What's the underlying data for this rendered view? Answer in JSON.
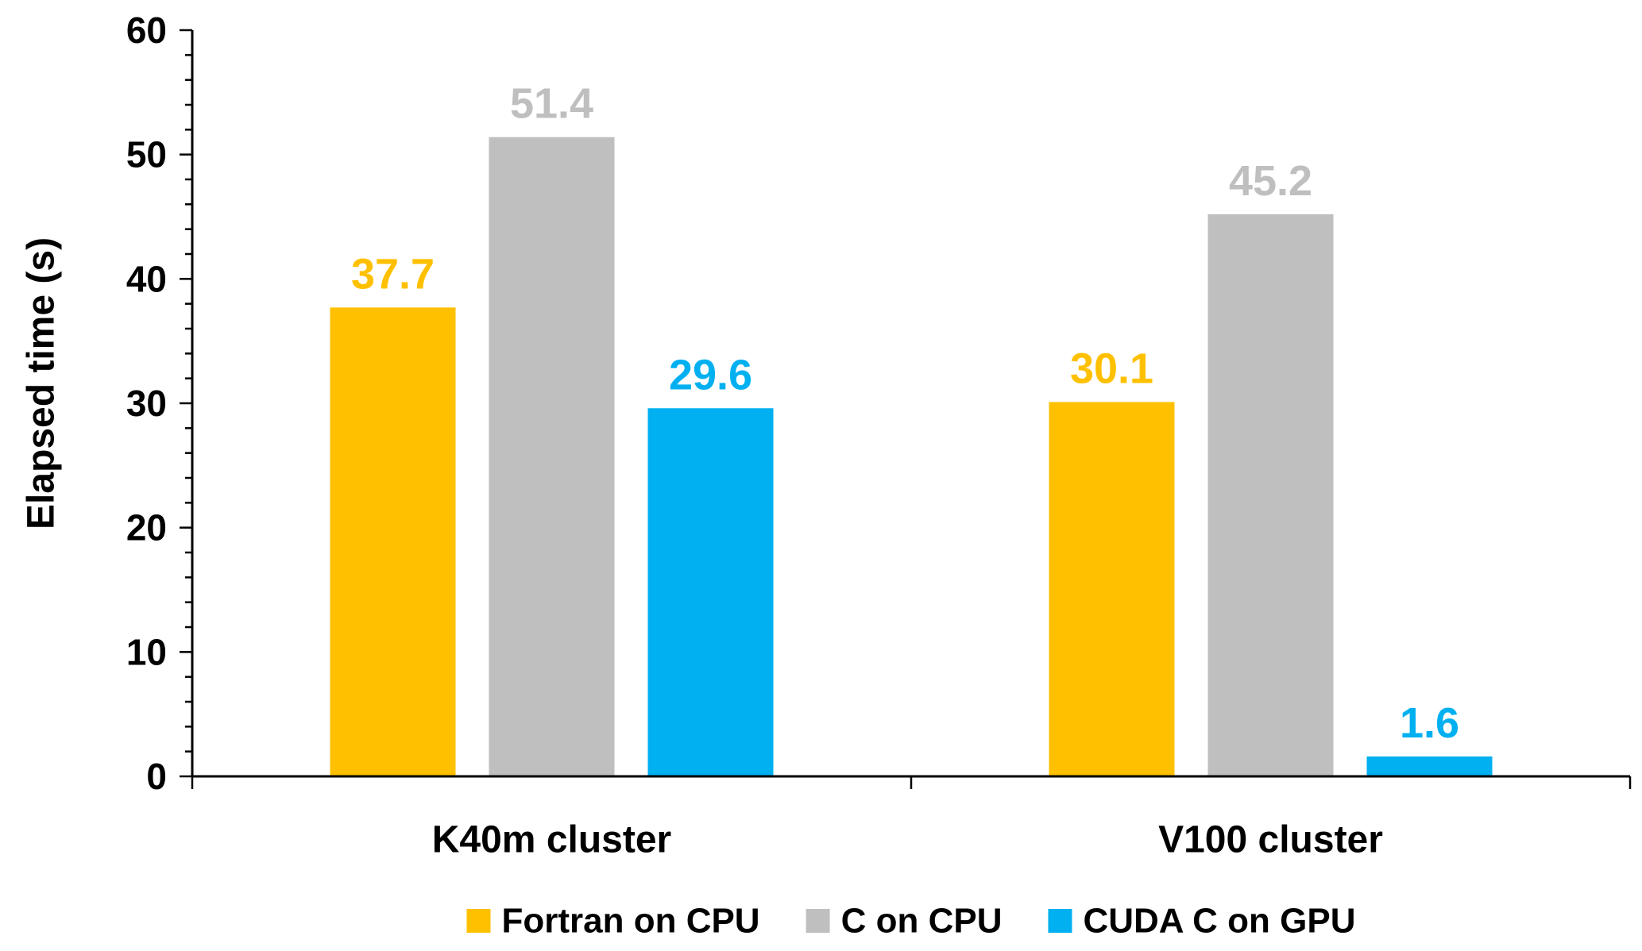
{
  "chart_data": {
    "type": "bar",
    "title": "",
    "xlabel": "",
    "ylabel": "Elapsed time (s)",
    "ylim": [
      0,
      60
    ],
    "yticks": [
      0,
      10,
      20,
      30,
      40,
      50,
      60
    ],
    "minor_tick_step": 2,
    "grid": false,
    "legend_position": "bottom",
    "categories": [
      "K40m cluster",
      "V100 cluster"
    ],
    "series": [
      {
        "name": "Fortran on CPU",
        "color": "#FFC000",
        "values": [
          37.7,
          30.1
        ]
      },
      {
        "name": "C on CPU",
        "color": "#BFBFBF",
        "values": [
          51.4,
          45.2
        ]
      },
      {
        "name": "CUDA C on GPU",
        "color": "#00B0F0",
        "values": [
          29.6,
          1.6
        ]
      }
    ],
    "data_labels": true
  }
}
